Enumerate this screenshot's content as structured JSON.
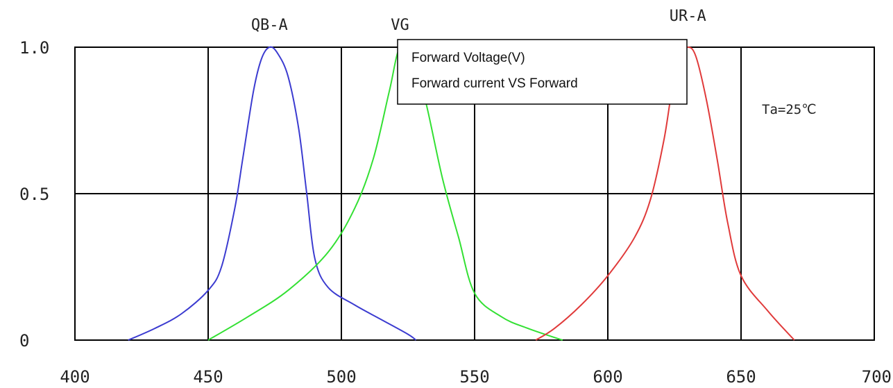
{
  "chart_data": {
    "type": "line",
    "title": "",
    "xlabel": "",
    "ylabel": "",
    "xlim": [
      400,
      700
    ],
    "ylim": [
      0,
      1.0
    ],
    "x_ticks": [
      "400",
      "450",
      "500",
      "550",
      "600",
      "650",
      "700"
    ],
    "y_ticks": [
      "0",
      "0.5",
      "1.0"
    ],
    "grid": true,
    "annotation": "Ta=25℃",
    "colors": {
      "QB-A": "#3b3bd0",
      "VG": "#33e033",
      "UR-A": "#e03a3a"
    },
    "series": [
      {
        "name": "QB-A",
        "points": [
          [
            420,
            0
          ],
          [
            430,
            0.04
          ],
          [
            440,
            0.09
          ],
          [
            450,
            0.17
          ],
          [
            455,
            0.25
          ],
          [
            460,
            0.45
          ],
          [
            463,
            0.62
          ],
          [
            467,
            0.85
          ],
          [
            470,
            0.96
          ],
          [
            473,
            1.0
          ],
          [
            476,
            0.98
          ],
          [
            480,
            0.9
          ],
          [
            484,
            0.72
          ],
          [
            487,
            0.5
          ],
          [
            490,
            0.28
          ],
          [
            495,
            0.18
          ],
          [
            505,
            0.12
          ],
          [
            515,
            0.07
          ],
          [
            525,
            0.02
          ],
          [
            528,
            0
          ]
        ]
      },
      {
        "name": "VG",
        "points": [
          [
            450,
            0
          ],
          [
            465,
            0.08
          ],
          [
            480,
            0.17
          ],
          [
            495,
            0.3
          ],
          [
            505,
            0.45
          ],
          [
            512,
            0.62
          ],
          [
            518,
            0.85
          ],
          [
            522,
            1.0
          ],
          [
            527,
            0.97
          ],
          [
            532,
            0.8
          ],
          [
            538,
            0.55
          ],
          [
            544,
            0.35
          ],
          [
            550,
            0.16
          ],
          [
            560,
            0.08
          ],
          [
            570,
            0.04
          ],
          [
            583,
            0
          ]
        ]
      },
      {
        "name": "UR-A",
        "points": [
          [
            573,
            0
          ],
          [
            580,
            0.04
          ],
          [
            590,
            0.12
          ],
          [
            600,
            0.22
          ],
          [
            610,
            0.35
          ],
          [
            616,
            0.48
          ],
          [
            621,
            0.68
          ],
          [
            624,
            0.85
          ],
          [
            627,
            0.97
          ],
          [
            630,
            1.0
          ],
          [
            633,
            0.97
          ],
          [
            637,
            0.82
          ],
          [
            641,
            0.62
          ],
          [
            645,
            0.4
          ],
          [
            650,
            0.22
          ],
          [
            660,
            0.1
          ],
          [
            670,
            0
          ]
        ]
      }
    ]
  },
  "legend_box": {
    "lines": [
      "Forward Voltage(V)",
      "Forward current VS Forward"
    ]
  }
}
